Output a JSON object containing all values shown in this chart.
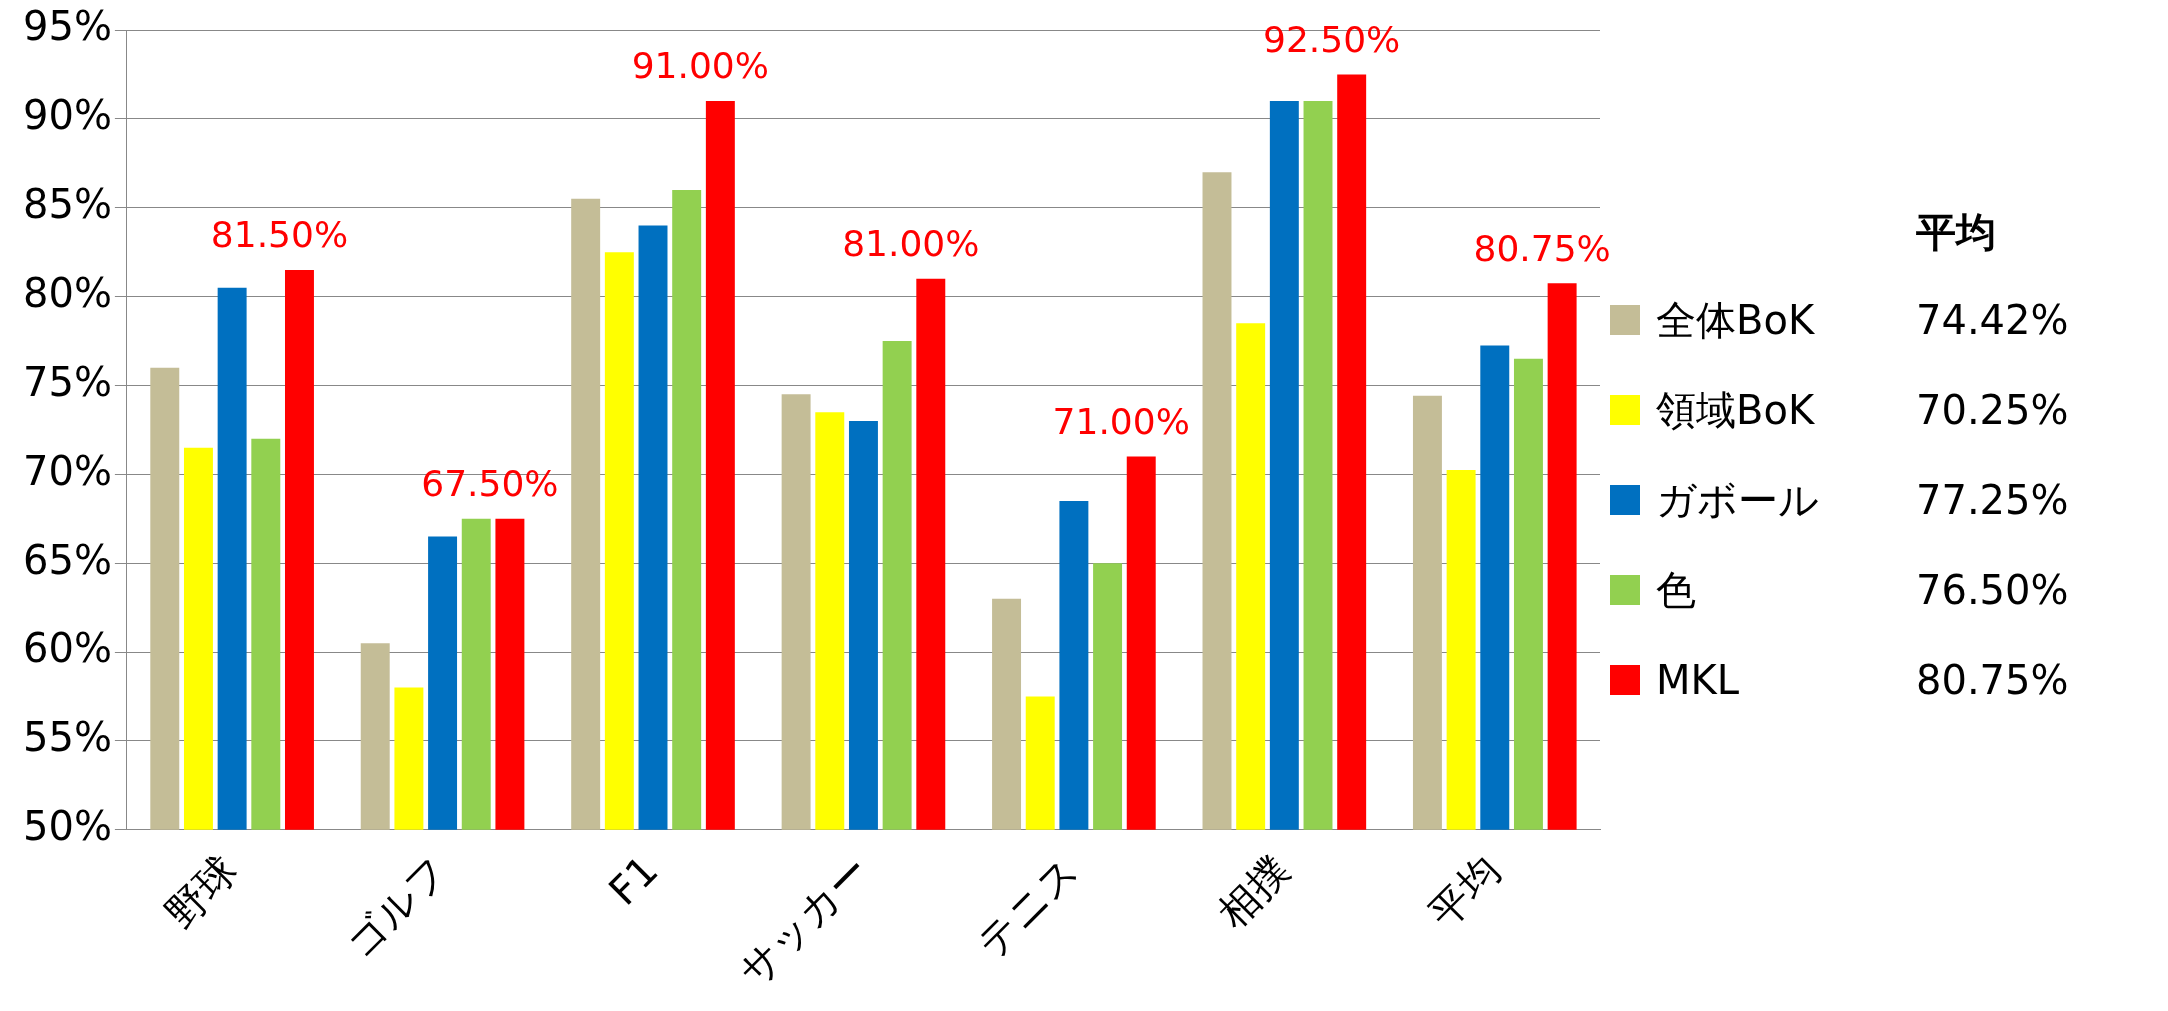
{
  "chart_data": {
    "type": "bar",
    "categories": [
      "野球",
      "ゴルフ",
      "F1",
      "サッカー",
      "テニス",
      "相撲",
      "平均"
    ],
    "series": [
      {
        "name": "全体BoK",
        "color": "#c4bd97",
        "values": [
          76,
          60.5,
          85.5,
          74.5,
          63,
          87,
          74.42
        ]
      },
      {
        "name": "領域BoK",
        "color": "#ffff00",
        "values": [
          71.5,
          58,
          82.5,
          73.5,
          57.5,
          78.5,
          70.25
        ]
      },
      {
        "name": "ガボール",
        "color": "#0070c0",
        "values": [
          80.5,
          66.5,
          84,
          73,
          68.5,
          91,
          77.25
        ]
      },
      {
        "name": "色",
        "color": "#92d050",
        "values": [
          72,
          67.5,
          86,
          77.5,
          65,
          91,
          76.5
        ]
      },
      {
        "name": "MKL",
        "color": "#ff0000",
        "values": [
          81.5,
          67.5,
          91,
          81,
          71,
          92.5,
          80.75
        ],
        "value_labels": [
          "81.50%",
          "67.50%",
          "91.00%",
          "81.00%",
          "71.00%",
          "92.50%",
          "80.75%"
        ]
      }
    ],
    "ylim": [
      50,
      95
    ],
    "yticks": [
      {
        "value": 50,
        "label": "50%"
      },
      {
        "value": 55,
        "label": "55%"
      },
      {
        "value": 60,
        "label": "60%"
      },
      {
        "value": 65,
        "label": "65%"
      },
      {
        "value": 70,
        "label": "70%"
      },
      {
        "value": 75,
        "label": "75%"
      },
      {
        "value": 80,
        "label": "80%"
      },
      {
        "value": 85,
        "label": "85%"
      },
      {
        "value": 90,
        "label": "90%"
      },
      {
        "value": 95,
        "label": "95%"
      }
    ],
    "grid": "y",
    "legend": "right",
    "legend_title": "平均",
    "annotations": [
      "74.42%",
      "70.25%",
      "77.25%",
      "76.50%",
      "80.75%"
    ]
  }
}
